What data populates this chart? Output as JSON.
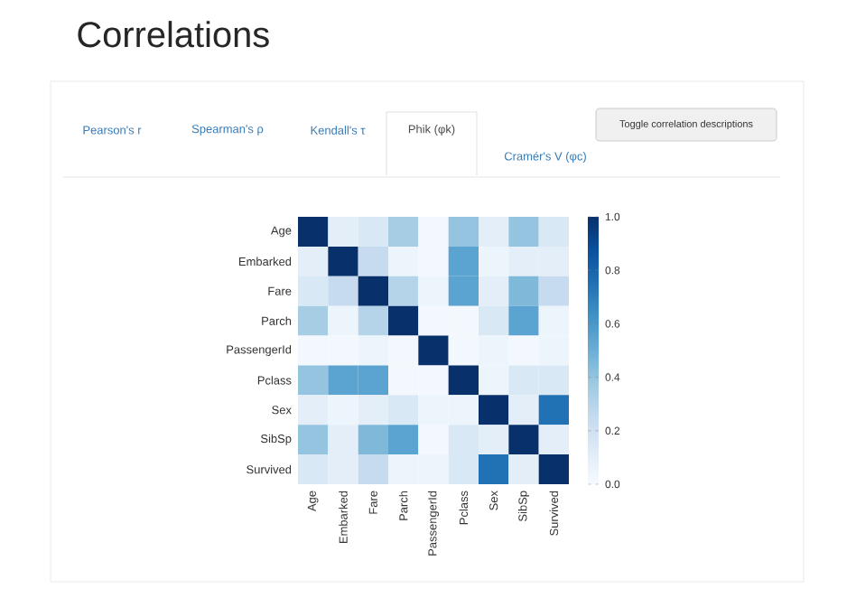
{
  "chart_data": {
    "type": "heatmap",
    "title": "Correlations",
    "categories": [
      "Age",
      "Embarked",
      "Fare",
      "Parch",
      "PassengerId",
      "Pclass",
      "Sex",
      "SibSp",
      "Survived"
    ],
    "y_categories": [
      "Age",
      "Embarked",
      "Fare",
      "Parch",
      "PassengerId",
      "Pclass",
      "Sex",
      "SibSp",
      "Survived"
    ],
    "cells": [
      [
        1.0,
        0.1,
        0.15,
        0.35,
        0.02,
        0.4,
        0.1,
        0.4,
        0.15
      ],
      [
        0.1,
        1.0,
        0.25,
        0.05,
        0.02,
        0.55,
        0.05,
        0.1,
        0.1
      ],
      [
        0.15,
        0.25,
        1.0,
        0.3,
        0.05,
        0.55,
        0.1,
        0.45,
        0.25
      ],
      [
        0.35,
        0.05,
        0.3,
        1.0,
        0.02,
        0.02,
        0.15,
        0.55,
        0.05
      ],
      [
        0.02,
        0.02,
        0.05,
        0.02,
        1.0,
        0.02,
        0.05,
        0.02,
        0.05
      ],
      [
        0.4,
        0.55,
        0.55,
        0.02,
        0.02,
        1.0,
        0.05,
        0.15,
        0.15
      ],
      [
        0.1,
        0.05,
        0.1,
        0.15,
        0.05,
        0.05,
        1.0,
        0.1,
        0.75
      ],
      [
        0.4,
        0.1,
        0.45,
        0.55,
        0.02,
        0.15,
        0.1,
        1.0,
        0.1
      ],
      [
        0.15,
        0.1,
        0.25,
        0.05,
        0.05,
        0.15,
        0.75,
        0.1,
        1.0
      ]
    ],
    "clim": [
      0,
      1
    ],
    "cticks": [
      {
        "value": 0,
        "label": "0.0"
      },
      {
        "value": 0.2,
        "label": "0.2"
      },
      {
        "value": 0.4,
        "label": "0.4"
      },
      {
        "value": 0.6,
        "label": "0.6"
      },
      {
        "value": 0.8,
        "label": "0.8"
      },
      {
        "value": 1,
        "label": "1.0"
      }
    ],
    "annotations": [
      "Pearson's r",
      "Spearman's ρ",
      "Kendall's τ",
      "Phik (φk)",
      "Cramér's V (φc)",
      "Toggle correlation descriptions"
    ]
  }
}
